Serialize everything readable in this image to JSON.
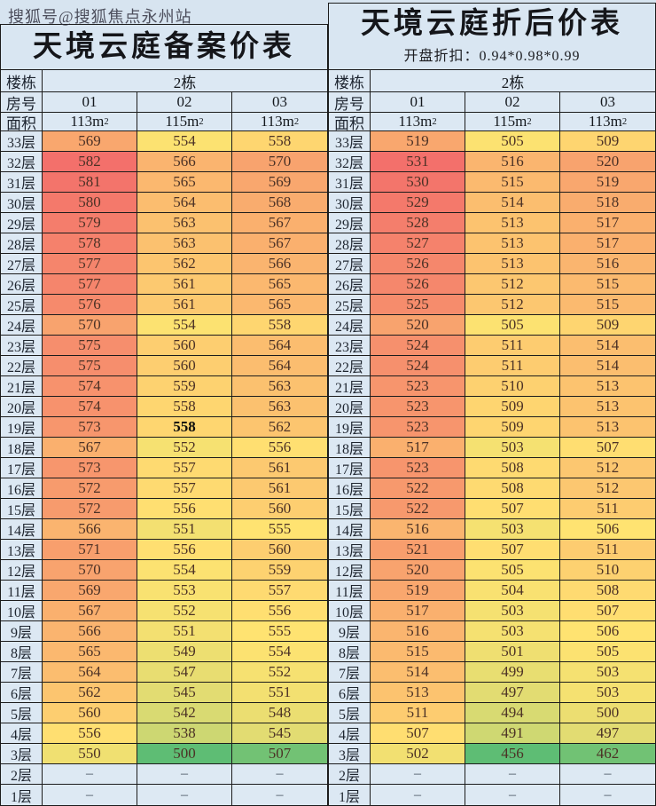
{
  "watermark": "搜狐号@搜狐焦点永州站",
  "colors": {
    "background": "#d7e4f0",
    "header_cell": "#dce8f3",
    "border": "#1c1c1c",
    "heat_green": "#5EBD74",
    "heat_yellow": "#FFE371",
    "heat_red": "#F3706B",
    "empty_cell": "#dde9f3"
  },
  "chart_data": [
    {
      "type": "heatmap-table",
      "title": "天境云庭备案价表",
      "subtitle": "",
      "building_label": "楼栋",
      "building": "2栋",
      "room_label": "房号",
      "rooms": [
        "01",
        "02",
        "03"
      ],
      "area_label": "面积",
      "areas": [
        "113m²",
        "115m²",
        "113m²"
      ],
      "floor_labels": [
        "33层",
        "32层",
        "31层",
        "30层",
        "29层",
        "28层",
        "27层",
        "26层",
        "25层",
        "24层",
        "23层",
        "22层",
        "21层",
        "20层",
        "19层",
        "18层",
        "17层",
        "16层",
        "15层",
        "14层",
        "13层",
        "12层",
        "11层",
        "10层",
        "9层",
        "8层",
        "7层",
        "6层",
        "5层",
        "4层",
        "3层",
        "2层",
        "1层"
      ],
      "rows": [
        [
          569,
          554,
          558
        ],
        [
          582,
          566,
          570
        ],
        [
          581,
          565,
          569
        ],
        [
          580,
          564,
          568
        ],
        [
          579,
          563,
          567
        ],
        [
          578,
          563,
          567
        ],
        [
          577,
          562,
          566
        ],
        [
          577,
          561,
          565
        ],
        [
          576,
          561,
          565
        ],
        [
          570,
          554,
          558
        ],
        [
          575,
          560,
          564
        ],
        [
          575,
          560,
          564
        ],
        [
          574,
          559,
          563
        ],
        [
          574,
          558,
          563
        ],
        [
          573,
          558,
          562
        ],
        [
          567,
          552,
          556
        ],
        [
          573,
          557,
          561
        ],
        [
          572,
          557,
          561
        ],
        [
          572,
          556,
          560
        ],
        [
          566,
          551,
          555
        ],
        [
          571,
          556,
          560
        ],
        [
          570,
          554,
          559
        ],
        [
          569,
          553,
          557
        ],
        [
          567,
          552,
          556
        ],
        [
          566,
          551,
          555
        ],
        [
          565,
          549,
          554
        ],
        [
          564,
          547,
          552
        ],
        [
          562,
          545,
          551
        ],
        [
          560,
          542,
          548
        ],
        [
          556,
          538,
          545
        ],
        [
          550,
          500,
          507
        ],
        [
          "–",
          "–",
          "–"
        ],
        [
          "–",
          "–",
          "–"
        ]
      ],
      "bold_cells": [
        {
          "floor_index": 14,
          "col": 1
        }
      ],
      "color_scale": {
        "min": 500,
        "mid": 555,
        "max": 582,
        "min_color": "#5EBD74",
        "mid_color": "#FFE371",
        "max_color": "#F3706B",
        "empty_color": "#dde9f3"
      }
    },
    {
      "type": "heatmap-table",
      "title": "天境云庭折后价表",
      "subtitle": "开盘折扣：0.94*0.98*0.99",
      "building_label": "楼栋",
      "building": "2栋",
      "room_label": "房号",
      "rooms": [
        "01",
        "02",
        "03"
      ],
      "area_label": "面积",
      "areas": [
        "113m²",
        "115m²",
        "113m²"
      ],
      "floor_labels": [
        "33层",
        "32层",
        "31层",
        "30层",
        "29层",
        "28层",
        "27层",
        "26层",
        "25层",
        "24层",
        "23层",
        "22层",
        "21层",
        "20层",
        "19层",
        "18层",
        "17层",
        "16层",
        "15层",
        "14层",
        "13层",
        "12层",
        "11层",
        "10层",
        "9层",
        "8层",
        "7层",
        "6层",
        "5层",
        "4层",
        "3层",
        "2层",
        "1层"
      ],
      "rows": [
        [
          519,
          505,
          509
        ],
        [
          531,
          516,
          520
        ],
        [
          530,
          515,
          519
        ],
        [
          529,
          514,
          518
        ],
        [
          528,
          513,
          517
        ],
        [
          527,
          513,
          517
        ],
        [
          526,
          513,
          516
        ],
        [
          526,
          512,
          515
        ],
        [
          525,
          512,
          515
        ],
        [
          520,
          505,
          509
        ],
        [
          524,
          511,
          514
        ],
        [
          524,
          511,
          514
        ],
        [
          523,
          510,
          513
        ],
        [
          523,
          509,
          513
        ],
        [
          523,
          509,
          513
        ],
        [
          517,
          503,
          507
        ],
        [
          523,
          508,
          512
        ],
        [
          522,
          508,
          512
        ],
        [
          522,
          507,
          511
        ],
        [
          516,
          503,
          506
        ],
        [
          521,
          507,
          511
        ],
        [
          520,
          505,
          510
        ],
        [
          519,
          504,
          508
        ],
        [
          517,
          503,
          507
        ],
        [
          516,
          503,
          506
        ],
        [
          515,
          501,
          505
        ],
        [
          514,
          499,
          503
        ],
        [
          513,
          497,
          503
        ],
        [
          511,
          494,
          500
        ],
        [
          507,
          491,
          497
        ],
        [
          502,
          456,
          462
        ],
        [
          "–",
          "–",
          "–"
        ],
        [
          "–",
          "–",
          "–"
        ]
      ],
      "bold_cells": [],
      "color_scale": {
        "min": 456,
        "mid": 506,
        "max": 531,
        "min_color": "#5EBD74",
        "mid_color": "#FFE371",
        "max_color": "#F3706B",
        "empty_color": "#dde9f3"
      }
    }
  ]
}
